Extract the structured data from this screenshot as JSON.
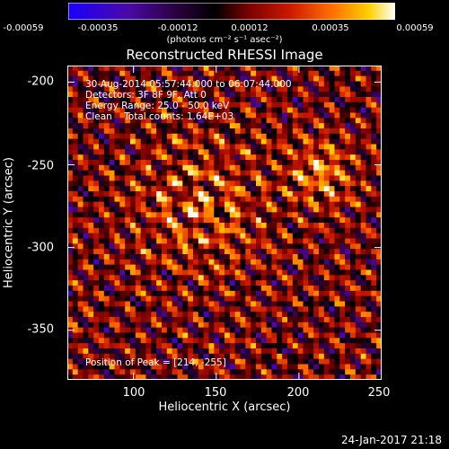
{
  "colorbar": {
    "ticks": [
      "-0.00059",
      "-0.00035",
      "-0.00012",
      "0.00012",
      "0.00035",
      "0.00059"
    ],
    "tick_values": [
      -0.00059,
      -0.00035,
      -0.00012,
      0.00012,
      0.00035,
      0.00059
    ],
    "unit_label": "(photons cm⁻² s⁻¹ asec⁻²)",
    "colors": [
      "#1a00ff",
      "#4b0aa8",
      "#2a0040",
      "#000000",
      "#7a0000",
      "#cc1a00",
      "#ff6a00",
      "#ffd000",
      "#ffffff"
    ]
  },
  "chart_data": {
    "type": "heatmap",
    "title": "Reconstructed RHESSI Image",
    "xlabel": "Heliocentric X (arcsec)",
    "ylabel": "Heliocentric Y (arcsec)",
    "xlim": [
      60,
      250
    ],
    "ylim": [
      -380,
      -190
    ],
    "x_ticks": [
      "100",
      "150",
      "200",
      "250"
    ],
    "x_tick_values": [
      100,
      150,
      200,
      250
    ],
    "y_ticks": [
      "-200",
      "-250",
      "-300",
      "-350"
    ],
    "y_tick_values": [
      -200,
      -250,
      -300,
      -350
    ],
    "annotations": [
      "30-Aug-2014 05:57:44.000 to 06:07:44.000",
      "Detectors: 3F 8F 9F, Att 0",
      "Energy Range: 25.0 - 50.0 keV",
      "Clean    Total counts: 1.64E+03"
    ],
    "peak_label": "Position of Peak = [214, -255]",
    "peak": [
      214,
      -255
    ]
  },
  "timestamp": "24-Jan-2017 21:18"
}
